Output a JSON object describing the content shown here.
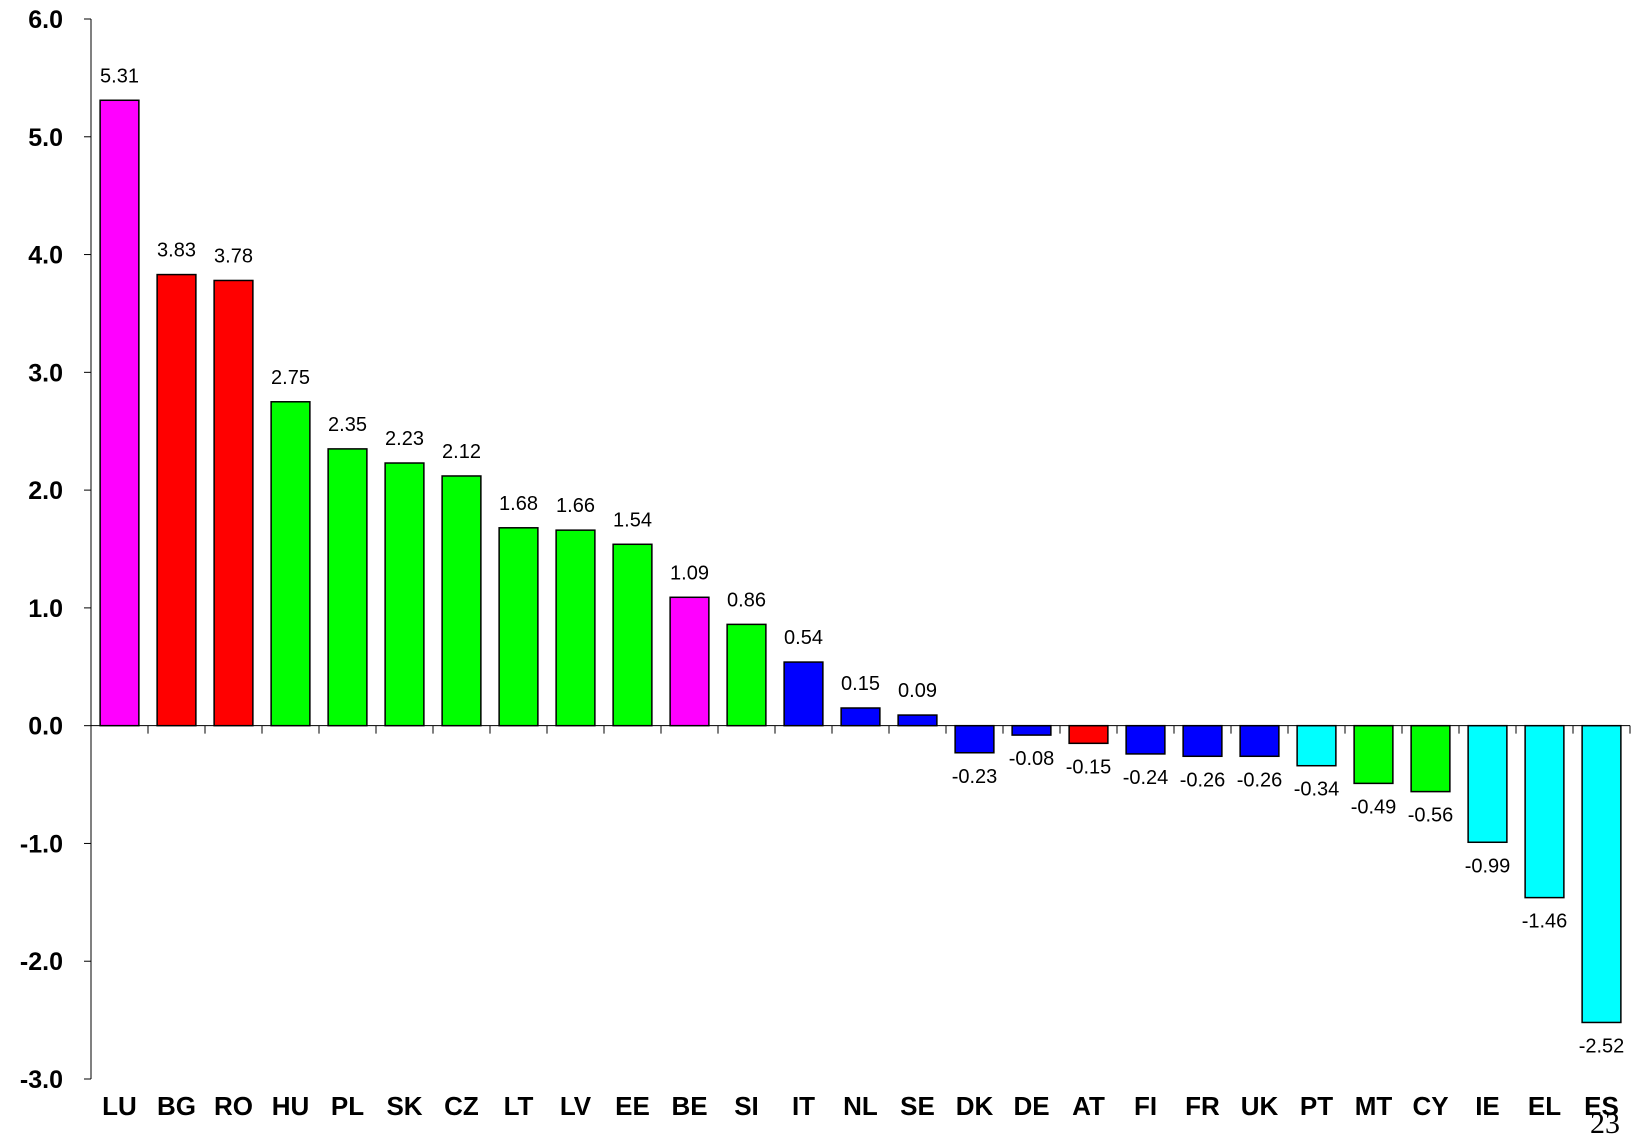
{
  "chart_data": {
    "type": "bar",
    "title": "",
    "xlabel": "",
    "ylabel": "",
    "ylim": [
      -3.0,
      6.0
    ],
    "y_ticks": [
      "6.0",
      "5.0",
      "4.0",
      "3.0",
      "2.0",
      "1.0",
      "0.0",
      "-1.0",
      "-2.0",
      "-3.0"
    ],
    "grid": false,
    "legend": "none",
    "categories": [
      "LU",
      "BG",
      "RO",
      "HU",
      "PL",
      "SK",
      "CZ",
      "LT",
      "LV",
      "EE",
      "BE",
      "SI",
      "IT",
      "NL",
      "SE",
      "DK",
      "DE",
      "AT",
      "FI",
      "FR",
      "UK",
      "PT",
      "MT",
      "CY",
      "IE",
      "EL",
      "ES"
    ],
    "values": [
      5.31,
      3.83,
      3.78,
      2.75,
      2.35,
      2.23,
      2.12,
      1.68,
      1.66,
      1.54,
      1.09,
      0.86,
      0.54,
      0.15,
      0.09,
      -0.23,
      -0.08,
      -0.15,
      -0.24,
      -0.26,
      -0.26,
      -0.34,
      -0.49,
      -0.56,
      -0.99,
      -1.46,
      -2.52
    ],
    "value_labels": [
      "5.31",
      "3.83",
      "3.78",
      "2.75",
      "2.35",
      "2.23",
      "2.12",
      "1.68",
      "1.66",
      "1.54",
      "1.09",
      "0.86",
      "0.54",
      "0.15",
      "0.09",
      "-0.23",
      "-0.08",
      "-0.15",
      "-0.24",
      "-0.26",
      "-0.26",
      "-0.34",
      "-0.49",
      "-0.56",
      "-0.99",
      "-1.46",
      "-2.52"
    ],
    "bar_colors": [
      "#ff00ff",
      "#ff0000",
      "#ff0000",
      "#00ff00",
      "#00ff00",
      "#00ff00",
      "#00ff00",
      "#00ff00",
      "#00ff00",
      "#00ff00",
      "#ff00ff",
      "#00ff00",
      "#0000ff",
      "#0000ff",
      "#0000ff",
      "#0000ff",
      "#0000ff",
      "#ff0000",
      "#0000ff",
      "#0000ff",
      "#0000ff",
      "#00ffff",
      "#00ff00",
      "#00ff00",
      "#00ffff",
      "#00ffff",
      "#00ffff"
    ]
  },
  "page_number": "23"
}
